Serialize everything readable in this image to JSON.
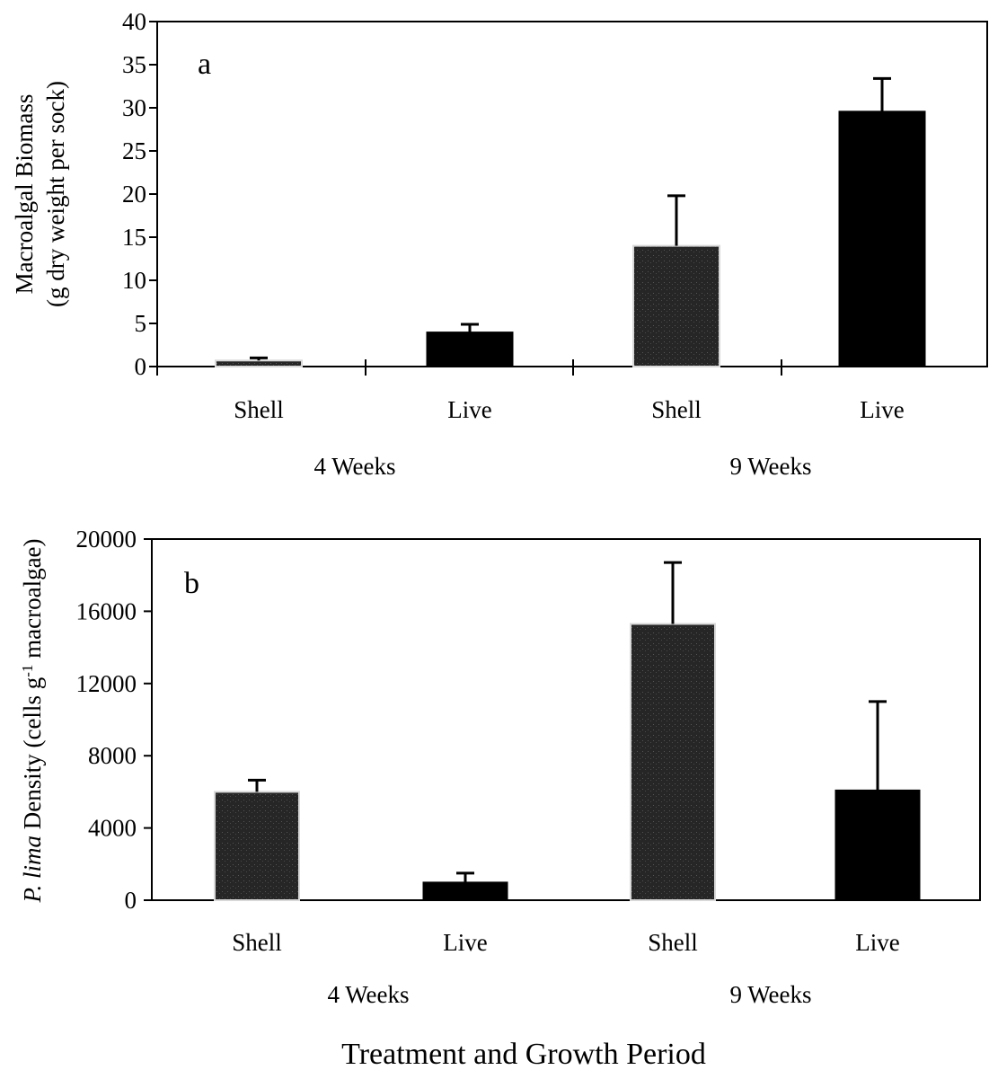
{
  "chart_data": [
    {
      "type": "bar",
      "panel_label": "a",
      "categories": [
        "Shell",
        "Live",
        "Shell",
        "Live"
      ],
      "groups": [
        "4 Weeks",
        "9 Weeks"
      ],
      "values": [
        0.7,
        4.0,
        14.0,
        29.6
      ],
      "errors": [
        0.3,
        0.9,
        5.8,
        3.8
      ],
      "ylabel_line1": "Macroalgal Biomass",
      "ylabel_line2": "(g dry weight per sock)",
      "ylim": [
        0,
        40
      ],
      "yticks": [
        0,
        5,
        10,
        15,
        20,
        25,
        30,
        35,
        40
      ],
      "xlabel": "",
      "grid": false,
      "colors": {
        "shell": "#2a2a2a",
        "live": "#000000"
      }
    },
    {
      "type": "bar",
      "panel_label": "b",
      "categories": [
        "Shell",
        "Live",
        "Shell",
        "Live"
      ],
      "groups": [
        "4 Weeks",
        "9 Weeks"
      ],
      "values": [
        6000,
        1000,
        15300,
        6100
      ],
      "errors": [
        650,
        500,
        3400,
        4900
      ],
      "ylabel_italic": "P. lima",
      "ylabel_rest": " Density (cells g",
      "ylabel_sup": "-1",
      "ylabel_end": " macroalgae)",
      "ylim": [
        0,
        20000
      ],
      "yticks": [
        0,
        4000,
        8000,
        12000,
        16000,
        20000
      ],
      "xlabel": "Treatment and Growth Period",
      "grid": false,
      "colors": {
        "shell": "#2a2a2a",
        "live": "#000000"
      }
    }
  ]
}
